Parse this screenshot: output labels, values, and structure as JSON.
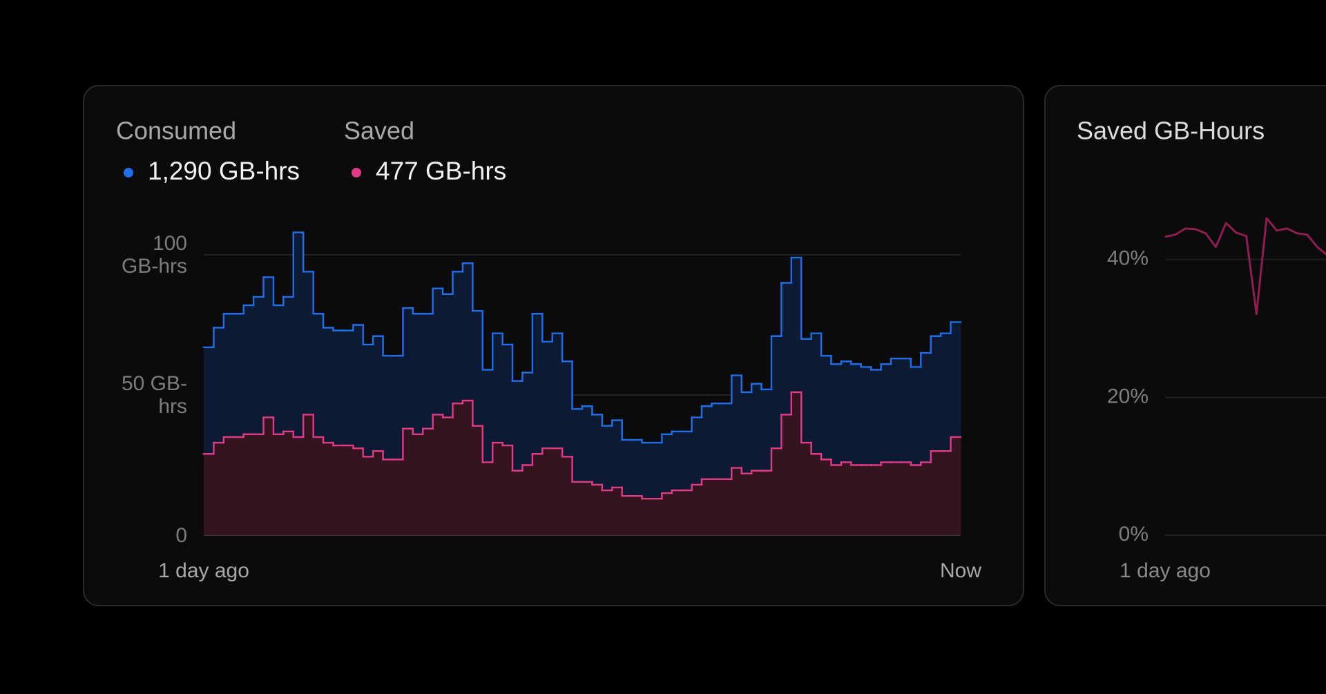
{
  "chart_data": [
    {
      "type": "step-area",
      "categories": [
        "1 day ago",
        null,
        null,
        null,
        null,
        null,
        null,
        null,
        null,
        null,
        null,
        null,
        null,
        null,
        null,
        null,
        null,
        null,
        null,
        null,
        null,
        null,
        null,
        null,
        null,
        null,
        null,
        null,
        null,
        null,
        null,
        null,
        null,
        null,
        null,
        null,
        null,
        null,
        null,
        null,
        null,
        null,
        null,
        null,
        null,
        null,
        null,
        null,
        null,
        null,
        null,
        null,
        null,
        null,
        null,
        null,
        null,
        null,
        null,
        null,
        null,
        null,
        null,
        null,
        null,
        null,
        null,
        null,
        null,
        null,
        null,
        null,
        null,
        null,
        null,
        "Now"
      ],
      "series": [
        {
          "name": "Consumed",
          "legend_value": "1,290 GB-hrs",
          "color": "#1f6fea",
          "area_color": "#0c1a33",
          "values": [
            67,
            74,
            79,
            79,
            82,
            85,
            92,
            82,
            85,
            108,
            94,
            79,
            74,
            73,
            73,
            75,
            68,
            71,
            64,
            64,
            81,
            79,
            79,
            88,
            86,
            94,
            97,
            80,
            59,
            72,
            68,
            55,
            58,
            79,
            69,
            72,
            62,
            45,
            46,
            43,
            39,
            41,
            34,
            34,
            33,
            33,
            36,
            37,
            37,
            42,
            46,
            47,
            47,
            57,
            51,
            54,
            52,
            71,
            90,
            99,
            70,
            72,
            64,
            61,
            62,
            61,
            60,
            59,
            61,
            63,
            63,
            60,
            65,
            71,
            72,
            76
          ]
        },
        {
          "name": "Saved",
          "legend_value": "477 GB-hrs",
          "color": "#e23b86",
          "area_color": "#33141f",
          "values": [
            29,
            33,
            35,
            35,
            36,
            36,
            42,
            36,
            37,
            35,
            43,
            35,
            33,
            32,
            32,
            31,
            28,
            30,
            27,
            27,
            38,
            36,
            38,
            43,
            42,
            47,
            48,
            39,
            26,
            33,
            32,
            23,
            25,
            29,
            31,
            31,
            28,
            19,
            19,
            18,
            16,
            17,
            14,
            14,
            13,
            13,
            15,
            16,
            16,
            18,
            20,
            20,
            20,
            24,
            22,
            23,
            23,
            31,
            43,
            51,
            33,
            29,
            27,
            25,
            26,
            25,
            25,
            25,
            26,
            26,
            26,
            25,
            26,
            30,
            30,
            35
          ]
        }
      ],
      "ylim": [
        0,
        110
      ],
      "yticks": [
        {
          "value": 100,
          "label": "100 GB-hrs"
        },
        {
          "value": 50,
          "label": "50 GB-hrs"
        },
        0
      ],
      "grid": true
    },
    {
      "type": "line",
      "title": "Saved GB-Hours",
      "categories": [
        "1 day ago",
        null,
        null,
        null,
        null,
        null,
        null,
        null,
        null,
        null,
        null,
        null,
        null,
        null,
        null,
        null,
        null
      ],
      "values": [
        43.3,
        43.6,
        44.5,
        44.4,
        43.8,
        41.8,
        45.3,
        43.9,
        43.4,
        32.1,
        46,
        44.2,
        44.5,
        43.8,
        43.6,
        41.8,
        40.6
      ],
      "color": "#8e1e4f",
      "ylim": [
        0,
        50
      ],
      "yticks": [
        {
          "value": 0,
          "label": "0%"
        },
        {
          "value": 20,
          "label": "20%"
        },
        {
          "value": 40,
          "label": "40%"
        }
      ],
      "grid": true
    }
  ]
}
